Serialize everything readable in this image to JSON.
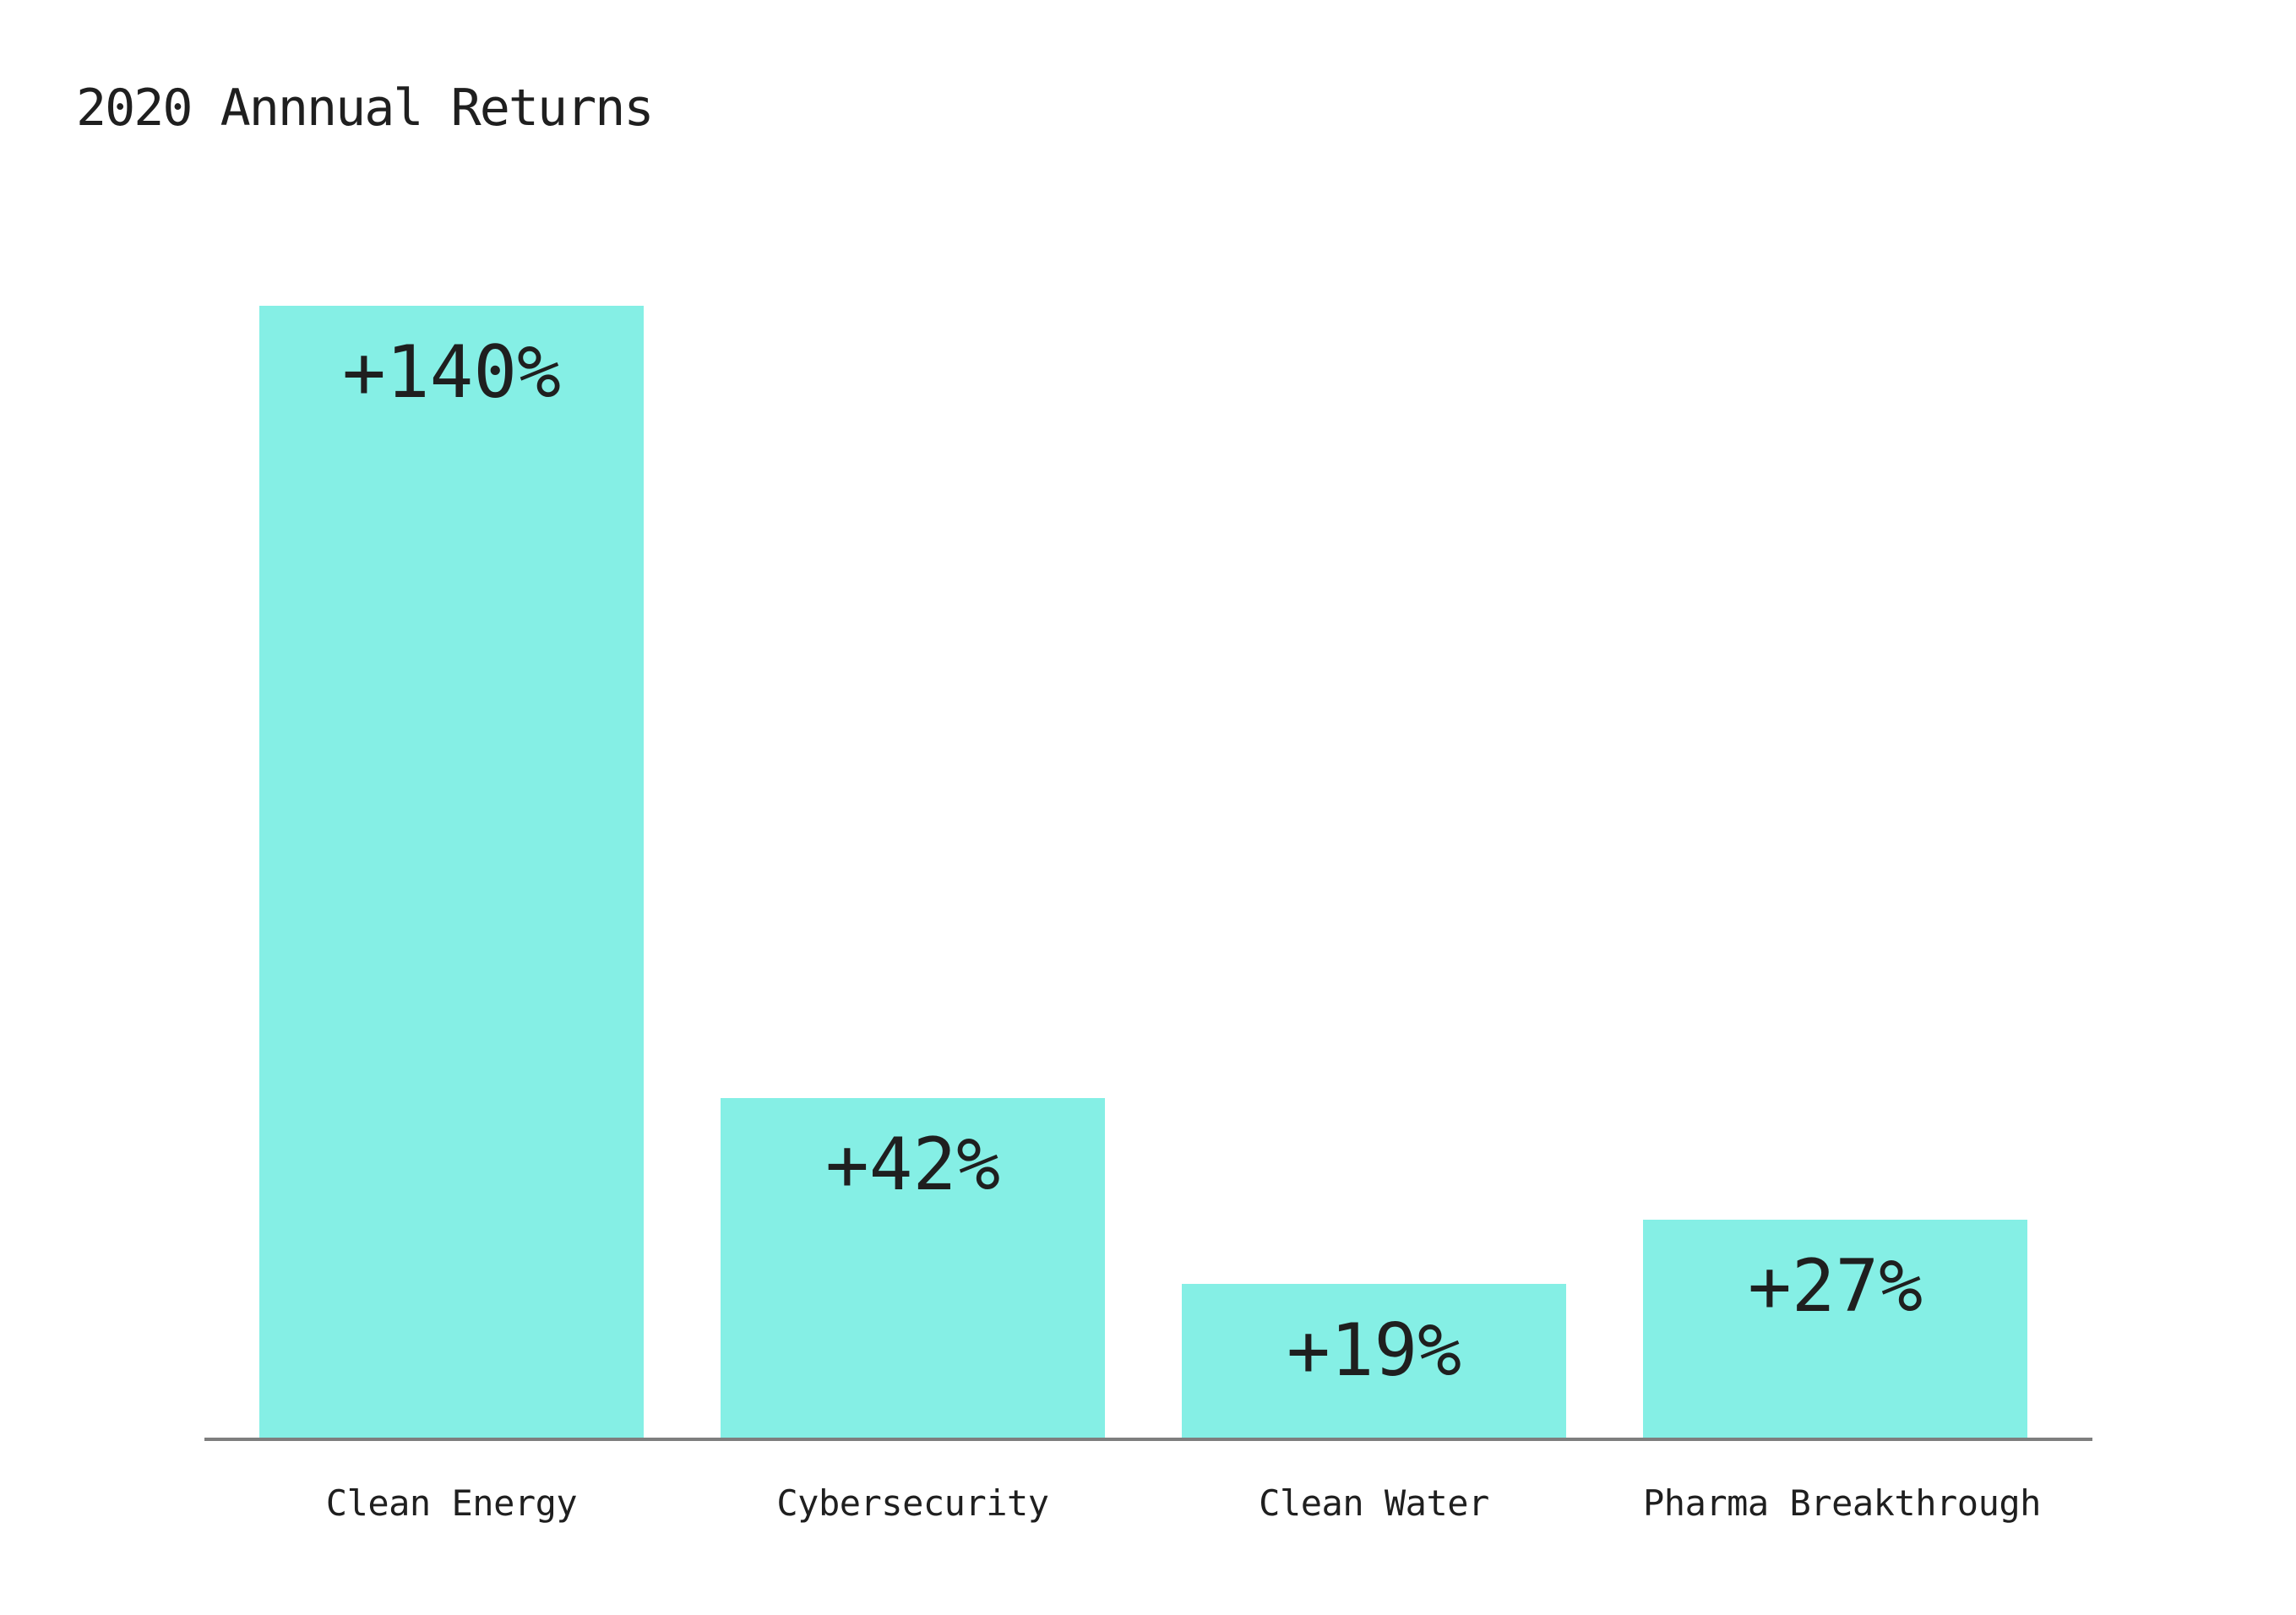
{
  "chart_data": {
    "type": "bar",
    "title": "2020 Annnual Returns",
    "categories": [
      "Clean Energy",
      "Cybersecurity",
      "Clean Water",
      "Pharma Breakthrough"
    ],
    "values": [
      140,
      42,
      19,
      27
    ],
    "value_labels": [
      "+140%",
      "+42%",
      "+19%",
      "+27%"
    ],
    "xlabel": "",
    "ylabel": "",
    "ylim": [
      0,
      140
    ],
    "grid": false,
    "legend": false,
    "bar_color": "#85EFE5",
    "axis_line_color": "#7e7e7e",
    "text_color": "#1f1f1f"
  }
}
